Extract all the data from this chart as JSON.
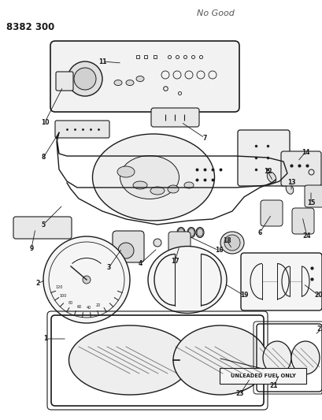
{
  "title": "8382 300",
  "bg_color": "#ffffff",
  "line_color": "#1a1a1a",
  "title_fontsize": 8.5,
  "watermark_text": "No Good",
  "label_text": "UNLEADED FUEL ONLY",
  "figsize": [
    4.1,
    5.33
  ],
  "dpi": 100
}
